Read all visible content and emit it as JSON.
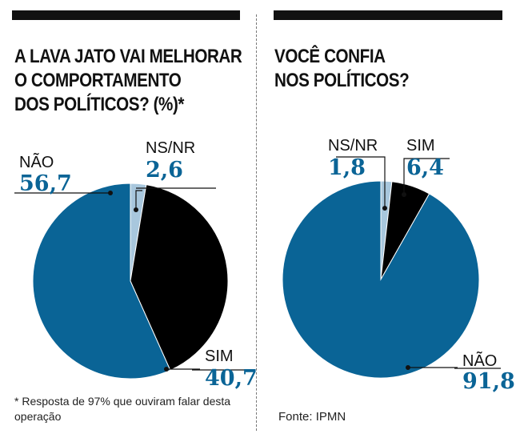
{
  "colors": {
    "nao": "#0a6496",
    "sim": "#000000",
    "nsnr": "#a8c7dd",
    "value_text": "#0a6496",
    "label_text": "#111111"
  },
  "left": {
    "title_lines": [
      "A LAVA JATO VAI MELHORAR",
      "O COMPORTAMENTO",
      "DOS POLÍTICOS? (%)*"
    ],
    "footnote_mark": "*",
    "footnote": "Resposta de 97% que ouviram falar desta operação"
  },
  "right": {
    "title_lines": [
      "VOCÊ CONFIA",
      "NOS POLÍTICOS?"
    ],
    "source": "Fonte: IPMN"
  },
  "chart_data": [
    {
      "type": "pie",
      "title": "A LAVA JATO VAI MELHORAR O COMPORTAMENTO DOS POLÍTICOS? (%)*",
      "slices": [
        {
          "label": "NS/NR",
          "value": 2.6,
          "display": "2,6",
          "color": "#a8c7dd"
        },
        {
          "label": "SIM",
          "value": 40.7,
          "display": "40,7",
          "color": "#000000"
        },
        {
          "label": "NÃO",
          "value": 56.7,
          "display": "56,7",
          "color": "#0a6496"
        }
      ]
    },
    {
      "type": "pie",
      "title": "VOCÊ CONFIA NOS POLÍTICOS?",
      "slices": [
        {
          "label": "NS/NR",
          "value": 1.8,
          "display": "1,8",
          "color": "#a8c7dd"
        },
        {
          "label": "SIM",
          "value": 6.4,
          "display": "6,4",
          "color": "#000000"
        },
        {
          "label": "NÃO",
          "value": 91.8,
          "display": "91,8",
          "color": "#0a6496"
        }
      ]
    }
  ]
}
